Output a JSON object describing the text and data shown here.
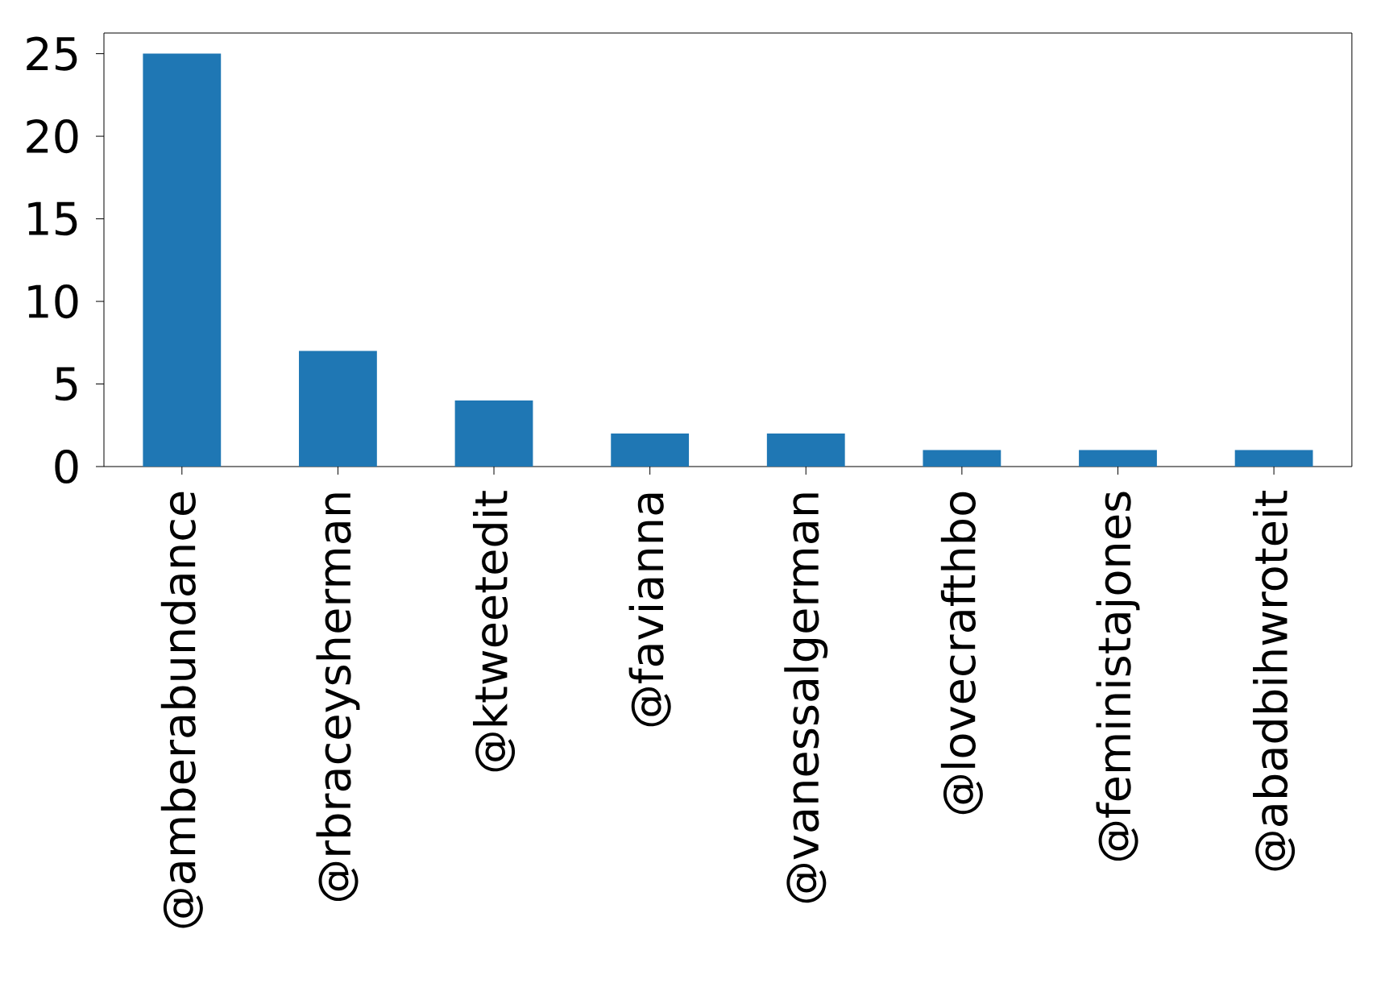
{
  "chart_data": {
    "type": "bar",
    "categories": [
      "@amberabundance",
      "@rbraceysherman",
      "@ktweetedit",
      "@favianna",
      "@vanessalgerman",
      "@lovecrafthbo",
      "@feministajones",
      "@abadbihwroteit"
    ],
    "values": [
      25,
      7,
      4,
      2,
      2,
      1,
      1,
      1
    ],
    "color": "#1f77b4",
    "ylim": [
      0,
      26.25
    ],
    "yticks": [
      0,
      5,
      10,
      15,
      20,
      25
    ]
  }
}
